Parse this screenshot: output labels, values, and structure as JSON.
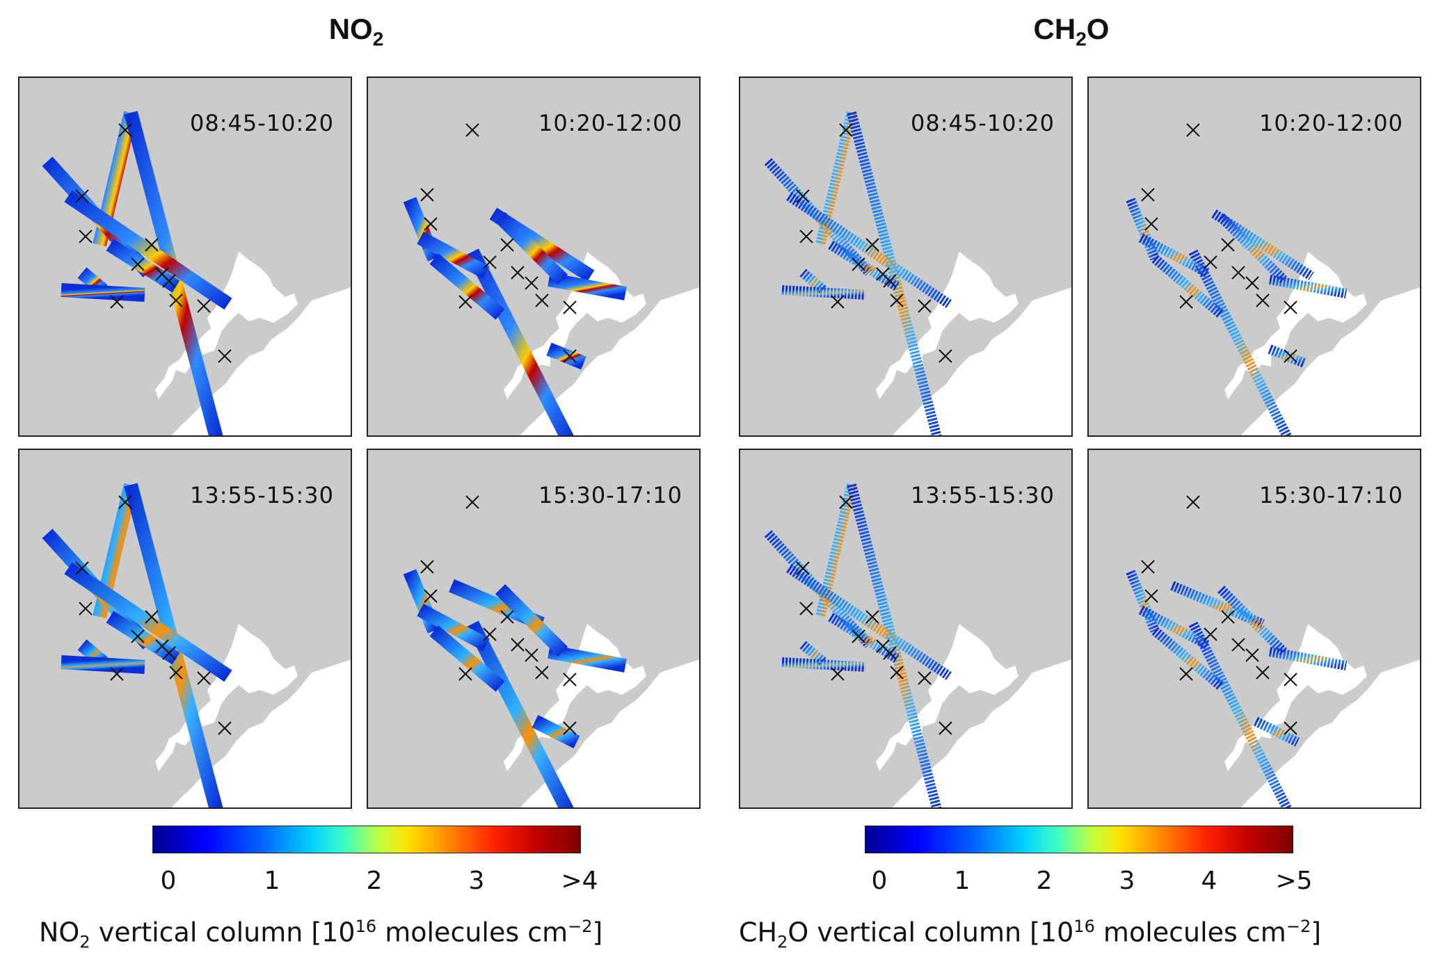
{
  "figure": {
    "no2": {
      "title_main": "NO",
      "title_sub": "2",
      "panels": [
        {
          "time": "08:45-10:20"
        },
        {
          "time": "10:20-12:00"
        },
        {
          "time": "13:55-15:30"
        },
        {
          "time": "15:30-17:10"
        }
      ],
      "colorbar": {
        "ticks": [
          "0",
          "1",
          "2",
          "3",
          ">4"
        ],
        "label_prefix": "NO",
        "label_prefix_sub": "2",
        "label_middle": " vertical column [10",
        "label_exp": "16",
        "label_units": " molecules cm",
        "label_units_exp": "−2",
        "label_end": "]"
      }
    },
    "ch2o": {
      "title_a": "CH",
      "title_sub": "2",
      "title_b": "O",
      "panels": [
        {
          "time": "08:45-10:20"
        },
        {
          "time": "10:20-12:00"
        },
        {
          "time": "13:55-15:30"
        },
        {
          "time": "15:30-17:10"
        }
      ],
      "colorbar": {
        "ticks": [
          "0",
          "1",
          "2",
          "3",
          "4",
          ">5"
        ],
        "label_prefix": "CH",
        "label_prefix_sub": "2",
        "label_prefix_tail": "O",
        "label_middle": " vertical column [10",
        "label_exp": "16",
        "label_units": " molecules cm",
        "label_units_exp": "−2",
        "label_end": "]"
      }
    },
    "colors": {
      "land": "#cbcbcb",
      "water": "#ffffff",
      "low": "#0a2fd6",
      "high": "#8b0000",
      "marker": "#111111"
    }
  }
}
